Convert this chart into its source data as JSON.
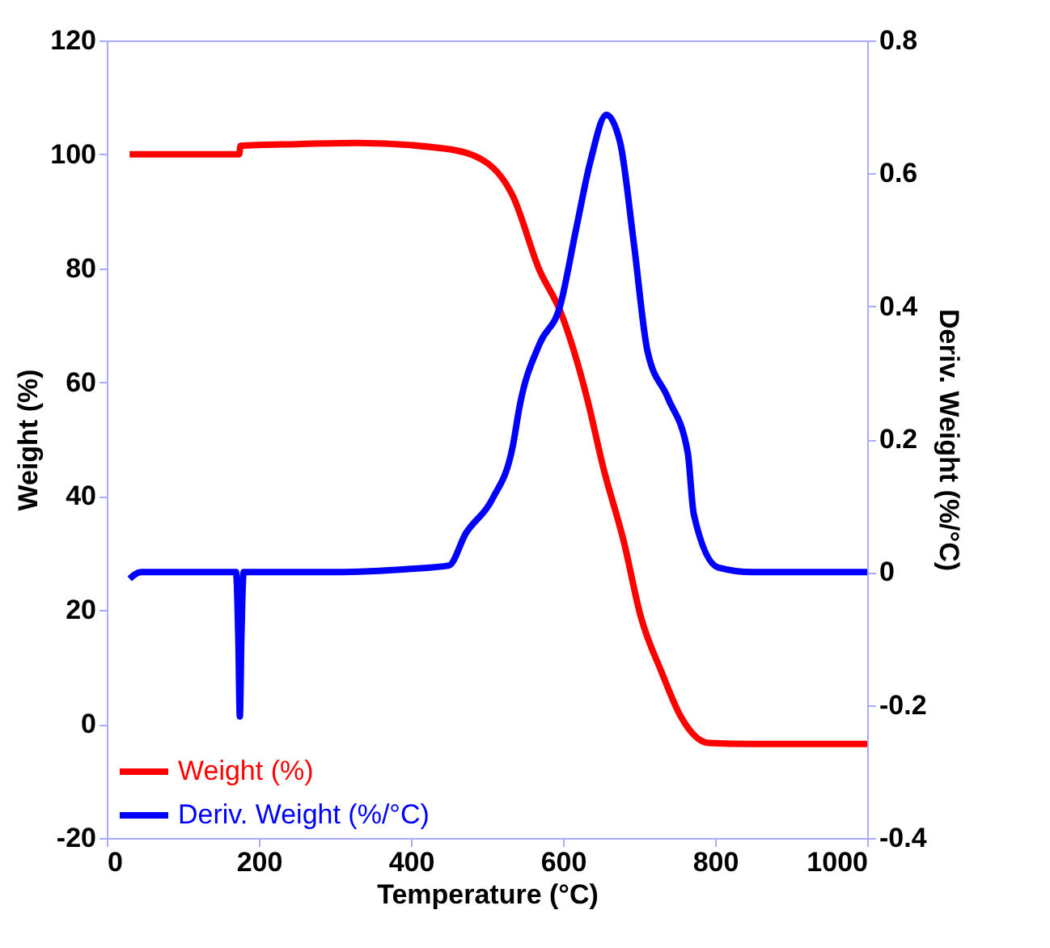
{
  "chart_data": {
    "type": "line",
    "xlabel": "Temperature (°C)",
    "ylabel": "Weight (%)",
    "y2label": "Deriv. Weight (%/°C)",
    "xlim": [
      0,
      1000
    ],
    "xticks": [
      0,
      200,
      400,
      600,
      800,
      1000
    ],
    "ylim": [
      -20,
      120
    ],
    "yticks": [
      -20,
      0,
      20,
      40,
      60,
      80,
      100,
      120
    ],
    "y2lim": [
      -0.4,
      0.8
    ],
    "y2ticks": [
      -0.4,
      -0.2,
      0,
      0.2,
      0.4,
      0.6,
      0.8
    ],
    "legend": "bottom left",
    "grid": false,
    "marker": "none",
    "line_style": "solid",
    "series": [
      {
        "name": "Weight (%)",
        "color": "#ff0000",
        "x": [
          30,
          100,
          174,
          176,
          250,
          330,
          445,
          498,
          534,
          569,
          596,
          632,
          653,
          680,
          702,
          730,
          755,
          791,
          850,
          1000
        ],
        "values": [
          100,
          100,
          100,
          101.5,
          101.8,
          102,
          101,
          98.7,
          92.7,
          79.7,
          72.6,
          57,
          45,
          32,
          19,
          9,
          1.3,
          -3.3,
          -3.5,
          -3.5
        ]
      },
      {
        "name": "Deriv. Weight (%/°C)",
        "color": "#0000ff",
        "axis": "y2",
        "x": [
          30,
          45,
          100,
          170,
          173,
          175,
          177,
          180,
          300,
          400,
          450,
          472,
          507,
          534,
          543,
          569,
          596,
          617,
          636,
          657,
          675,
          693,
          711,
          738,
          764,
          772,
          804,
          850,
          1000
        ],
        "values": [
          -0.01,
          0,
          0,
          0,
          -0.1,
          -0.217,
          -0.1,
          0,
          0,
          0.005,
          0.01,
          0.058,
          0.11,
          0.19,
          0.25,
          0.343,
          0.4,
          0.515,
          0.618,
          0.688,
          0.647,
          0.496,
          0.333,
          0.262,
          0.18,
          0.087,
          0.007,
          0,
          0
        ]
      }
    ]
  }
}
